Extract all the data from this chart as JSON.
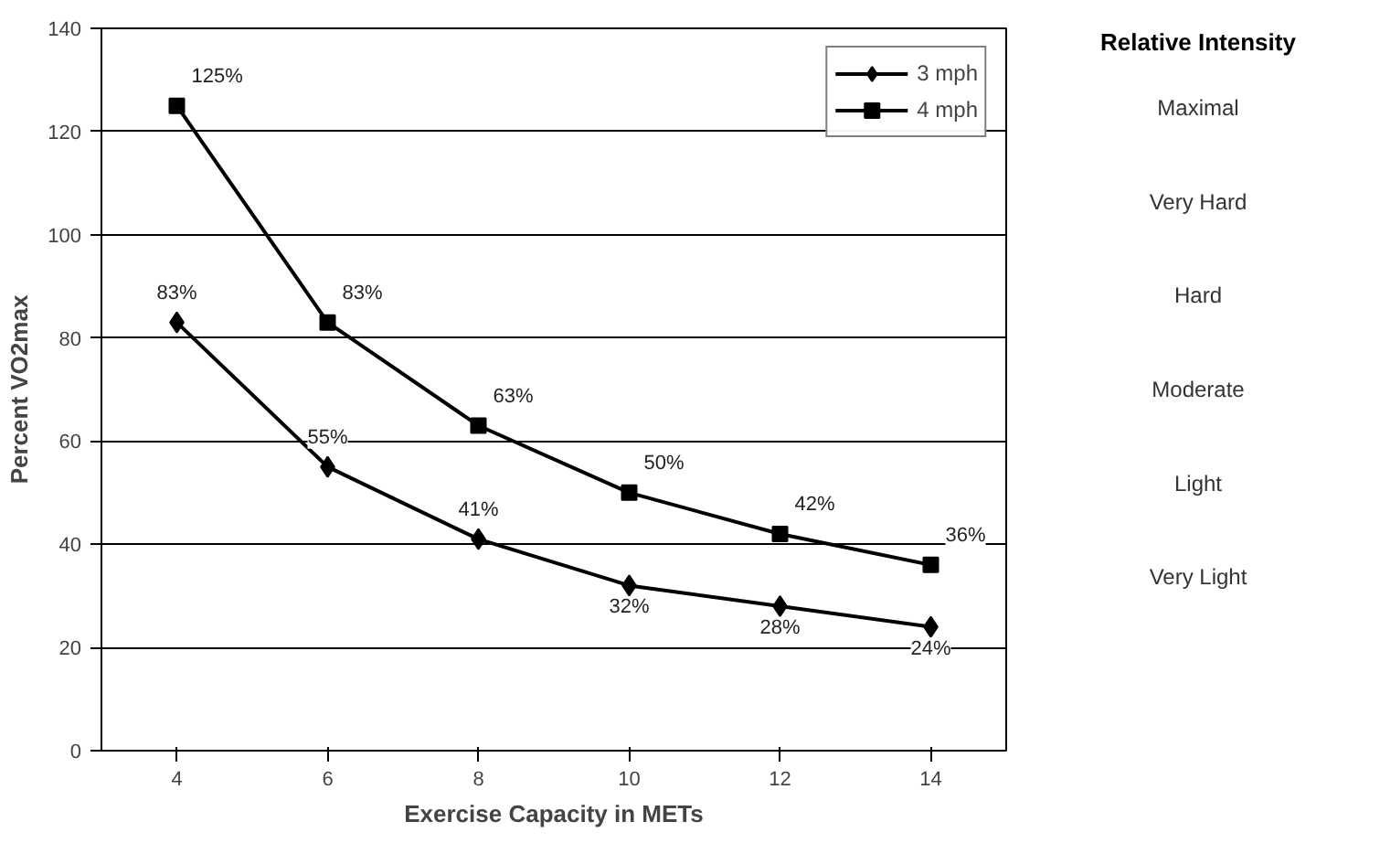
{
  "chart_data": {
    "type": "line",
    "xlabel": "Exercise Capacity in METs",
    "ylabel": "Percent VO2max",
    "x": [
      4,
      6,
      8,
      10,
      12,
      14
    ],
    "series": [
      {
        "name": "3 mph",
        "color": "#000000",
        "marker": "diamond",
        "values": [
          83,
          55,
          41,
          32,
          28,
          24
        ],
        "value_labels": [
          "83%",
          "55%",
          "41%",
          "32%",
          "28%",
          "24%"
        ]
      },
      {
        "name": "4 mph",
        "color": "#000000",
        "marker": "square",
        "values": [
          125,
          83,
          63,
          50,
          42,
          36
        ],
        "value_labels": [
          "125%",
          "83%",
          "63%",
          "50%",
          "42%",
          "36%"
        ]
      }
    ],
    "xlim": [
      3,
      15
    ],
    "xticks": [
      4,
      6,
      8,
      10,
      12,
      14
    ],
    "ylim": [
      0,
      140
    ],
    "yticks": [
      0,
      20,
      40,
      60,
      80,
      100,
      120,
      140
    ],
    "grid": "y",
    "legend": "top right",
    "line_style": "solid",
    "annotations": [
      "Relative Intensity",
      "Maximal",
      "Very Hard",
      "Hard",
      "Moderate",
      "Light",
      "Very Light"
    ]
  }
}
